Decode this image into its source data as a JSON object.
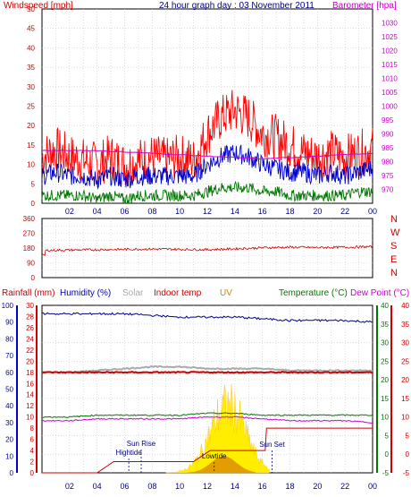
{
  "chart_data": [
    {
      "type": "line",
      "title": "24 hour graph day : 03 November 2011",
      "ylabel_left": "Windspeed [mph]",
      "ylabel_right": "Barometer [hpa]",
      "ylim_left": [
        0,
        50
      ],
      "yticks_left": [
        "0",
        "5",
        "10",
        "15",
        "20",
        "25",
        "30",
        "35",
        "40",
        "45",
        "50"
      ],
      "ylim_right": [
        965,
        1035
      ],
      "yticks_right": [
        "970",
        "975",
        "980",
        "985",
        "990",
        "995",
        "1000",
        "1005",
        "1010",
        "1015",
        "1020",
        "1025",
        "1030"
      ],
      "x_ticks": [
        "02",
        "04",
        "06",
        "08",
        "10",
        "12",
        "14",
        "16",
        "18",
        "20",
        "22",
        "00"
      ],
      "series": [
        {
          "name": "Windspeed gust",
          "color": "#ff0000",
          "x": [
            0,
            1,
            2,
            3,
            4,
            5,
            6,
            7,
            8,
            9,
            10,
            11,
            12,
            13,
            14,
            15,
            16,
            17,
            18,
            19,
            20,
            21,
            22,
            23,
            24
          ],
          "values": [
            12,
            14,
            12,
            11,
            10,
            12,
            10,
            11,
            12,
            11,
            12,
            11,
            18,
            22,
            24,
            22,
            18,
            17,
            15,
            13,
            12,
            13,
            12,
            13,
            14
          ]
        },
        {
          "name": "Windspeed average",
          "color": "#0000cc",
          "x": [
            0,
            1,
            2,
            3,
            4,
            5,
            6,
            7,
            8,
            9,
            10,
            11,
            12,
            13,
            14,
            15,
            16,
            17,
            18,
            19,
            20,
            21,
            22,
            23,
            24
          ],
          "values": [
            7,
            8,
            7,
            7,
            6,
            7,
            6,
            7,
            7,
            7,
            7,
            7,
            10,
            12,
            13,
            12,
            10,
            9,
            8,
            8,
            7,
            8,
            7,
            8,
            9
          ]
        },
        {
          "name": "Windspeed minimum",
          "color": "#007700",
          "x": [
            0,
            1,
            2,
            3,
            4,
            5,
            6,
            7,
            8,
            9,
            10,
            11,
            12,
            13,
            14,
            15,
            16,
            17,
            18,
            19,
            20,
            21,
            22,
            23,
            24
          ],
          "values": [
            2,
            2,
            2,
            2,
            1,
            2,
            1,
            2,
            2,
            2,
            2,
            2,
            3,
            4,
            4,
            4,
            3,
            3,
            2,
            2,
            2,
            2,
            2,
            3,
            3
          ]
        },
        {
          "name": "Barometer",
          "color": "#cc00cc",
          "axis": "right",
          "x": [
            0,
            2,
            4,
            6,
            8,
            10,
            12,
            14,
            16,
            18,
            20,
            22,
            24
          ],
          "values": [
            984,
            984,
            984,
            983.5,
            983,
            982.5,
            982,
            981.5,
            981,
            981.5,
            982,
            982.5,
            983
          ]
        }
      ]
    },
    {
      "type": "line",
      "ylim": [
        0,
        360
      ],
      "yticks": [
        "0",
        "45",
        "90",
        "135",
        "180",
        "225",
        "270",
        "315",
        "360"
      ],
      "right_labels": [
        "N",
        "W",
        "S",
        "E",
        "N"
      ],
      "x_ticks": [
        "02",
        "04",
        "06",
        "08",
        "10",
        "12",
        "14",
        "16",
        "18",
        "20",
        "22",
        "00"
      ],
      "series": [
        {
          "name": "Wind direction",
          "color": "#cc0000",
          "x": [
            0,
            2,
            4,
            6,
            8,
            10,
            12,
            14,
            16,
            18,
            20,
            22,
            24
          ],
          "values": [
            165,
            168,
            170,
            172,
            174,
            172,
            170,
            175,
            182,
            185,
            183,
            185,
            188
          ]
        }
      ]
    },
    {
      "type": "line",
      "header_labels": [
        {
          "text": "Rainfall (mm)",
          "color": "#cc0000"
        },
        {
          "text": "Humidity (%)",
          "color": "#0000aa"
        },
        {
          "text": "Solar",
          "color": "#aaaaaa"
        },
        {
          "text": "Indoor temp",
          "color": "#cc0000"
        },
        {
          "text": "UV",
          "color": "#cc8800"
        },
        {
          "text": "Temperature (°C)",
          "color": "#007700"
        },
        {
          "text": "Dew Point (°C)",
          "color": "#cc00cc"
        }
      ],
      "axis_rain": {
        "ylim": [
          0,
          30
        ],
        "yticks": [
          "0",
          "2",
          "4",
          "6",
          "8",
          "10",
          "12",
          "14",
          "16",
          "18",
          "20",
          "22",
          "24",
          "26",
          "28",
          "30"
        ]
      },
      "axis_humidity": {
        "ylim": [
          0,
          100
        ],
        "yticks": [
          "0",
          "10",
          "20",
          "30",
          "40",
          "50",
          "60",
          "70",
          "80",
          "90",
          "100"
        ]
      },
      "axis_temp": {
        "ylim": [
          -5,
          40
        ],
        "yticks": [
          "-5",
          "0",
          "5",
          "10",
          "15",
          "20",
          "25",
          "30",
          "35",
          "40"
        ]
      },
      "x_ticks": [
        "02",
        "04",
        "06",
        "08",
        "10",
        "12",
        "14",
        "16",
        "18",
        "20",
        "22",
        "00"
      ],
      "annotations": [
        {
          "text": "Hightide",
          "x": 6.3,
          "color": "#000080"
        },
        {
          "text": "Sun Rise",
          "x": 7.2,
          "color": "#000080"
        },
        {
          "text": "Lowtide",
          "x": 12.5,
          "color": "#000080"
        },
        {
          "text": "Sun Set",
          "x": 16.7,
          "color": "#000080"
        }
      ],
      "series": [
        {
          "name": "Humidity",
          "color": "#000088",
          "axis": "humidity",
          "x": [
            0,
            2,
            4,
            6,
            8,
            10,
            12,
            14,
            16,
            18,
            20,
            22,
            24
          ],
          "values": [
            95,
            95,
            95,
            95,
            94,
            93,
            93,
            93,
            92,
            91,
            91,
            91,
            90
          ]
        },
        {
          "name": "Solar",
          "color": "#aaaaaa",
          "axis": "temp",
          "x": [
            0,
            2,
            4,
            6,
            8,
            10,
            12,
            14,
            16,
            18,
            20,
            22,
            24
          ],
          "values": [
            22,
            22,
            22.5,
            23,
            23.5,
            23.5,
            23,
            23,
            23,
            22.5,
            22.5,
            22.5,
            22.5
          ]
        },
        {
          "name": "Indoor temp",
          "color": "#cc0000",
          "axis": "temp",
          "x": [
            0,
            2,
            4,
            6,
            8,
            10,
            12,
            14,
            16,
            18,
            20,
            22,
            24
          ],
          "values": [
            22,
            22,
            22,
            22,
            22,
            22,
            22,
            22,
            22,
            22,
            22,
            22,
            22
          ]
        },
        {
          "name": "Temperature",
          "color": "#007700",
          "axis": "temp",
          "x": [
            0,
            2,
            4,
            6,
            8,
            10,
            12,
            14,
            16,
            18,
            20,
            22,
            24
          ],
          "values": [
            10,
            10,
            10.5,
            10.5,
            10.5,
            10.5,
            11,
            11,
            10.5,
            10.5,
            10.5,
            10.5,
            10.5
          ]
        },
        {
          "name": "Dew Point",
          "color": "#cc00cc",
          "axis": "temp",
          "x": [
            0,
            2,
            4,
            6,
            8,
            10,
            12,
            14,
            16,
            18,
            20,
            22,
            24
          ],
          "values": [
            9,
            9,
            9.5,
            9.5,
            9.5,
            9.5,
            10,
            10,
            9.5,
            9,
            9,
            9,
            8.5
          ]
        },
        {
          "name": "Rainfall",
          "color": "#cc0000",
          "axis": "rain",
          "x": [
            0,
            4,
            5.2,
            11,
            12.2,
            16.2,
            16.3,
            24
          ],
          "values": [
            0,
            0,
            2,
            2,
            4,
            4,
            8,
            8
          ]
        }
      ]
    }
  ]
}
